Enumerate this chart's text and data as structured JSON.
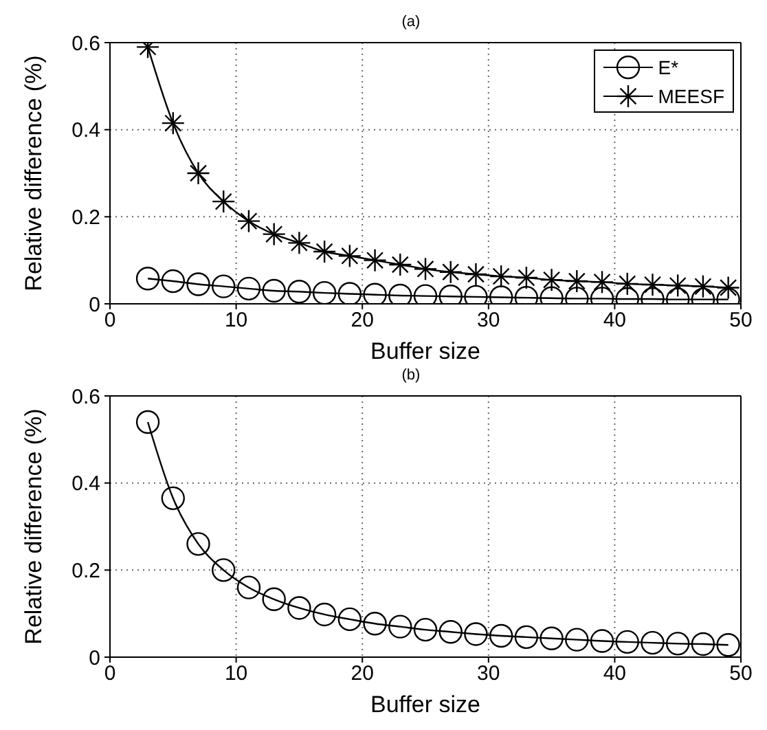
{
  "chart_data": [
    {
      "type": "line",
      "title": "(a)",
      "xlabel": "Buffer size",
      "ylabel": "Relative difference (%)",
      "x": [
        3,
        5,
        7,
        9,
        11,
        13,
        15,
        17,
        19,
        21,
        23,
        25,
        27,
        29,
        31,
        33,
        35,
        37,
        39,
        41,
        43,
        45,
        47,
        49
      ],
      "xlim": [
        0,
        50
      ],
      "xticks": [
        0,
        10,
        20,
        30,
        40,
        50
      ],
      "ylim": [
        0,
        0.6
      ],
      "yticks": [
        0,
        0.2,
        0.4,
        0.6
      ],
      "grid": true,
      "legend": "top right",
      "line_style": "solid",
      "series": [
        {
          "name": "E*",
          "color": "#000000",
          "marker": "circle",
          "values": [
            0.058,
            0.052,
            0.045,
            0.04,
            0.035,
            0.03,
            0.028,
            0.025,
            0.023,
            0.021,
            0.019,
            0.018,
            0.017,
            0.016,
            0.015,
            0.014,
            0.013,
            0.012,
            0.012,
            0.011,
            0.011,
            0.01,
            0.01,
            0.01
          ]
        },
        {
          "name": "MEESF",
          "color": "#000000",
          "marker": "cross",
          "values": [
            0.59,
            0.415,
            0.3,
            0.235,
            0.19,
            0.16,
            0.14,
            0.12,
            0.11,
            0.1,
            0.09,
            0.08,
            0.073,
            0.068,
            0.063,
            0.06,
            0.055,
            0.052,
            0.05,
            0.046,
            0.044,
            0.042,
            0.04,
            0.037
          ]
        }
      ]
    },
    {
      "type": "line",
      "title": "(b)",
      "xlabel": "Buffer size",
      "ylabel": "Relative difference (%)",
      "x": [
        3,
        5,
        7,
        9,
        11,
        13,
        15,
        17,
        19,
        21,
        23,
        25,
        27,
        29,
        31,
        33,
        35,
        37,
        39,
        41,
        43,
        45,
        47,
        49
      ],
      "xlim": [
        0,
        50
      ],
      "xticks": [
        0,
        10,
        20,
        30,
        40,
        50
      ],
      "ylim": [
        0,
        0.6
      ],
      "yticks": [
        0,
        0.2,
        0.4,
        0.6
      ],
      "grid": true,
      "line_style": "solid",
      "series": [
        {
          "color": "#000000",
          "marker": "circle",
          "values": [
            0.54,
            0.365,
            0.26,
            0.2,
            0.16,
            0.133,
            0.113,
            0.098,
            0.087,
            0.077,
            0.07,
            0.063,
            0.058,
            0.053,
            0.049,
            0.046,
            0.043,
            0.04,
            0.037,
            0.035,
            0.033,
            0.031,
            0.03,
            0.028
          ]
        }
      ]
    }
  ]
}
